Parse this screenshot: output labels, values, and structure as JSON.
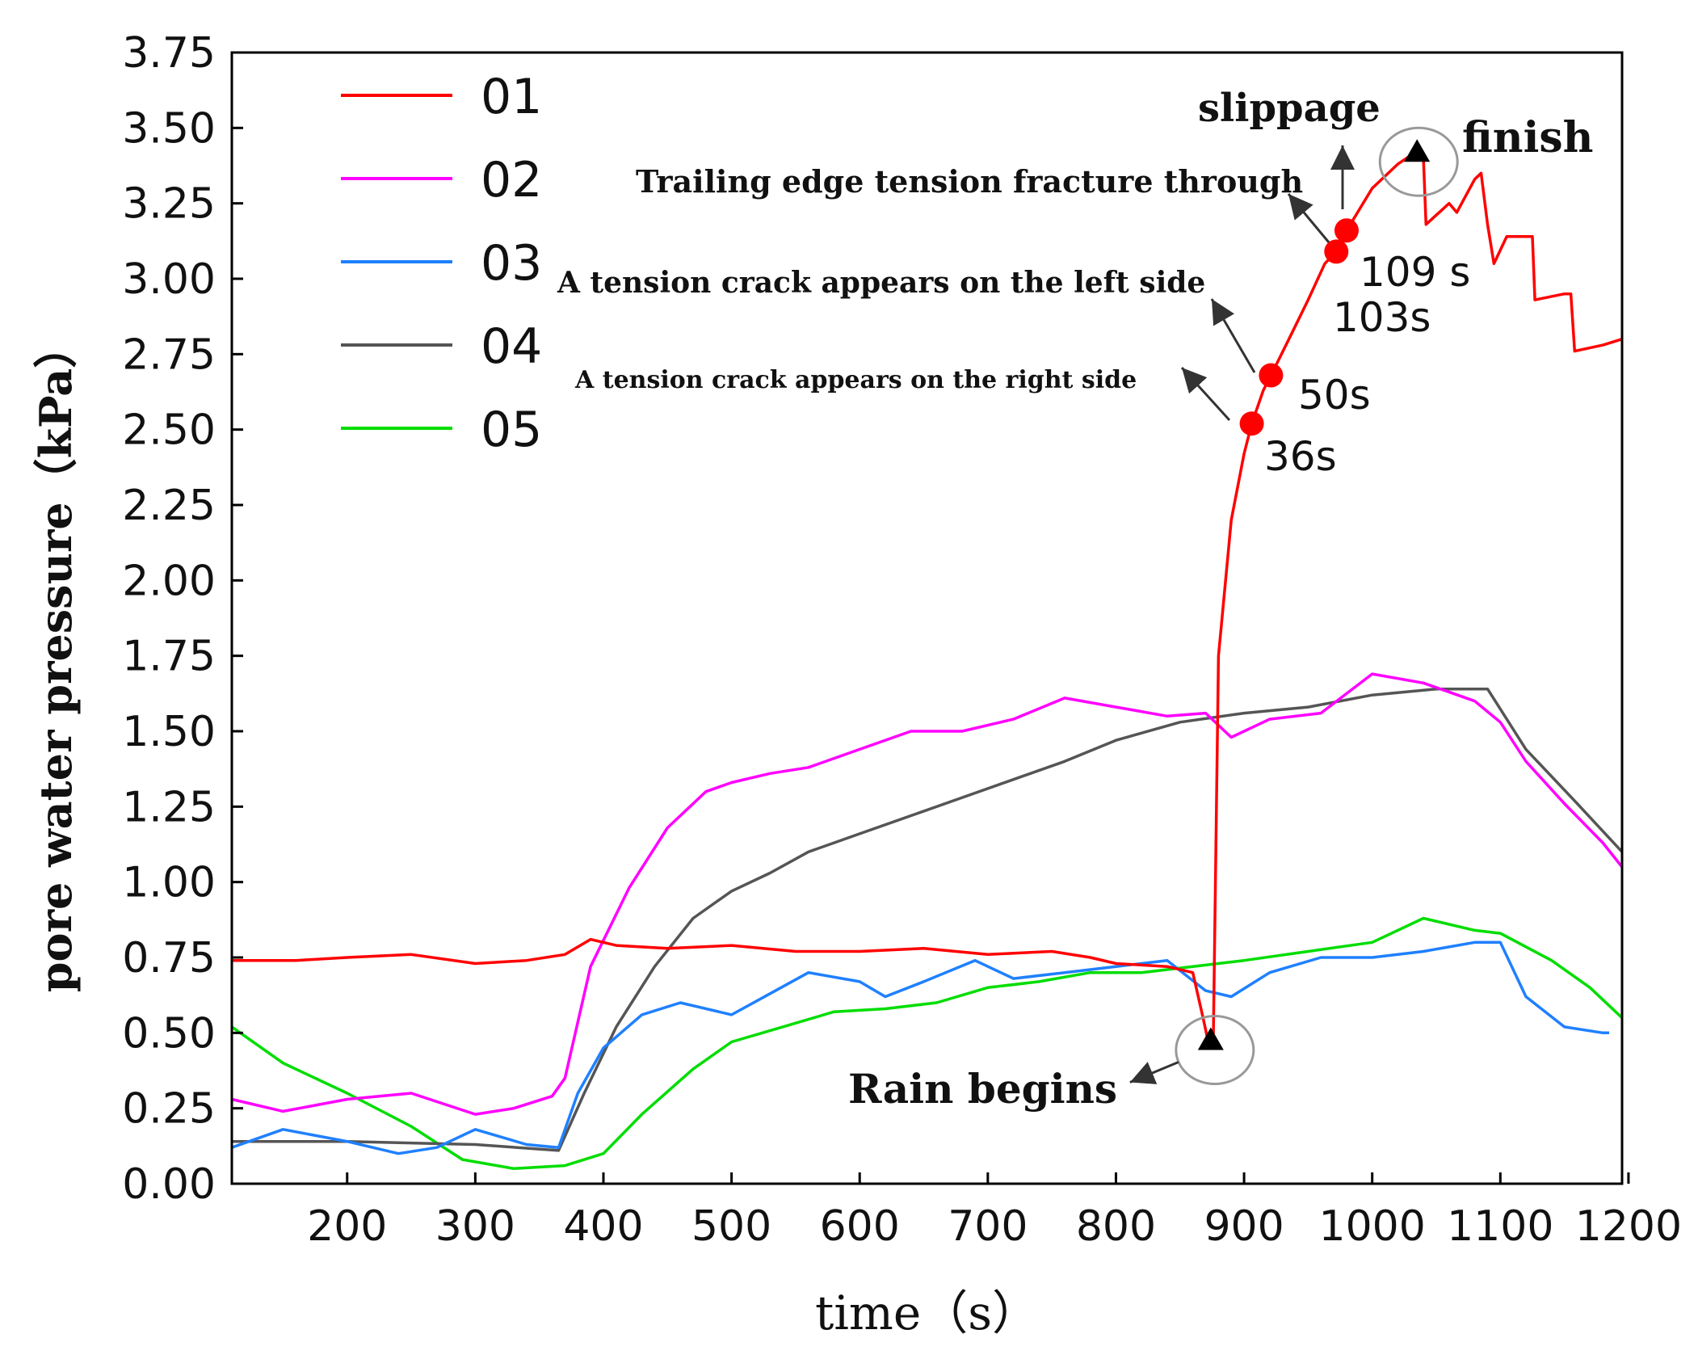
{
  "chart_data": {
    "type": "line",
    "xlabel": "time（s）",
    "ylabel": "pore water pressure（kPa）",
    "xlim": [
      110,
      1195
    ],
    "ylim": [
      0,
      3.75
    ],
    "x_ticks": [
      200,
      300,
      400,
      500,
      600,
      700,
      800,
      900,
      1000,
      1100,
      1200
    ],
    "x_tick_labels": [
      "200",
      "300",
      "400",
      "500",
      "600",
      "700",
      "800",
      "900",
      "1000",
      "1100",
      "1200"
    ],
    "y_ticks": [
      0,
      0.25,
      0.5,
      0.75,
      1.0,
      1.25,
      1.5,
      1.75,
      2.0,
      2.25,
      2.5,
      2.75,
      3.0,
      3.25,
      3.5,
      3.75
    ],
    "y_tick_labels": [
      "0.00",
      "0.25",
      "0.50",
      "0.75",
      "1.00",
      "1.25",
      "1.50",
      "1.75",
      "2.00",
      "2.25",
      "2.50",
      "2.75",
      "3.00",
      "3.25",
      "3.50",
      "3.75"
    ],
    "legend_position": "top-left",
    "series": [
      {
        "name": "01",
        "color": "#ff0000",
        "points": [
          [
            110,
            0.74
          ],
          [
            160,
            0.74
          ],
          [
            200,
            0.75
          ],
          [
            250,
            0.76
          ],
          [
            300,
            0.73
          ],
          [
            340,
            0.74
          ],
          [
            370,
            0.76
          ],
          [
            390,
            0.81
          ],
          [
            410,
            0.79
          ],
          [
            450,
            0.78
          ],
          [
            500,
            0.79
          ],
          [
            550,
            0.77
          ],
          [
            600,
            0.77
          ],
          [
            650,
            0.78
          ],
          [
            700,
            0.76
          ],
          [
            750,
            0.77
          ],
          [
            780,
            0.75
          ],
          [
            800,
            0.73
          ],
          [
            840,
            0.72
          ],
          [
            860,
            0.7
          ],
          [
            868,
            0.55
          ],
          [
            872,
            0.47
          ],
          [
            876,
            0.48
          ],
          [
            880,
            1.75
          ],
          [
            890,
            2.2
          ],
          [
            900,
            2.42
          ],
          [
            906,
            2.52
          ],
          [
            915,
            2.63
          ],
          [
            921,
            2.68
          ],
          [
            935,
            2.8
          ],
          [
            950,
            2.93
          ],
          [
            963,
            3.05
          ],
          [
            972,
            3.09
          ],
          [
            980,
            3.16
          ],
          [
            1000,
            3.3
          ],
          [
            1020,
            3.38
          ],
          [
            1034,
            3.42
          ],
          [
            1040,
            3.4
          ],
          [
            1042,
            3.18
          ],
          [
            1060,
            3.25
          ],
          [
            1066,
            3.22
          ],
          [
            1080,
            3.33
          ],
          [
            1085,
            3.35
          ],
          [
            1090,
            3.18
          ],
          [
            1095,
            3.05
          ],
          [
            1105,
            3.14
          ],
          [
            1125,
            3.14
          ],
          [
            1127,
            2.93
          ],
          [
            1150,
            2.95
          ],
          [
            1155,
            2.95
          ],
          [
            1158,
            2.76
          ],
          [
            1180,
            2.78
          ],
          [
            1195,
            2.8
          ]
        ]
      },
      {
        "name": "02",
        "color": "#ff00ff",
        "points": [
          [
            110,
            0.28
          ],
          [
            150,
            0.24
          ],
          [
            200,
            0.28
          ],
          [
            250,
            0.3
          ],
          [
            300,
            0.23
          ],
          [
            330,
            0.25
          ],
          [
            360,
            0.29
          ],
          [
            370,
            0.35
          ],
          [
            390,
            0.72
          ],
          [
            420,
            0.98
          ],
          [
            450,
            1.18
          ],
          [
            480,
            1.3
          ],
          [
            500,
            1.33
          ],
          [
            530,
            1.36
          ],
          [
            560,
            1.38
          ],
          [
            600,
            1.44
          ],
          [
            640,
            1.5
          ],
          [
            680,
            1.5
          ],
          [
            720,
            1.54
          ],
          [
            760,
            1.61
          ],
          [
            800,
            1.58
          ],
          [
            840,
            1.55
          ],
          [
            870,
            1.56
          ],
          [
            890,
            1.48
          ],
          [
            920,
            1.54
          ],
          [
            960,
            1.56
          ],
          [
            1000,
            1.69
          ],
          [
            1040,
            1.66
          ],
          [
            1080,
            1.6
          ],
          [
            1100,
            1.53
          ],
          [
            1120,
            1.4
          ],
          [
            1150,
            1.26
          ],
          [
            1180,
            1.13
          ],
          [
            1195,
            1.05
          ]
        ]
      },
      {
        "name": "03",
        "color": "#1f80ff",
        "points": [
          [
            110,
            0.12
          ],
          [
            150,
            0.18
          ],
          [
            200,
            0.14
          ],
          [
            240,
            0.1
          ],
          [
            270,
            0.12
          ],
          [
            300,
            0.18
          ],
          [
            340,
            0.13
          ],
          [
            365,
            0.12
          ],
          [
            380,
            0.3
          ],
          [
            400,
            0.45
          ],
          [
            430,
            0.56
          ],
          [
            460,
            0.6
          ],
          [
            500,
            0.56
          ],
          [
            530,
            0.63
          ],
          [
            560,
            0.7
          ],
          [
            600,
            0.67
          ],
          [
            620,
            0.62
          ],
          [
            650,
            0.67
          ],
          [
            690,
            0.74
          ],
          [
            720,
            0.68
          ],
          [
            760,
            0.7
          ],
          [
            800,
            0.72
          ],
          [
            840,
            0.74
          ],
          [
            870,
            0.64
          ],
          [
            890,
            0.62
          ],
          [
            920,
            0.7
          ],
          [
            960,
            0.75
          ],
          [
            1000,
            0.75
          ],
          [
            1040,
            0.77
          ],
          [
            1080,
            0.8
          ],
          [
            1100,
            0.8
          ],
          [
            1120,
            0.62
          ],
          [
            1150,
            0.52
          ],
          [
            1180,
            0.5
          ],
          [
            1185,
            0.5
          ]
        ]
      },
      {
        "name": "04",
        "color": "#555555",
        "points": [
          [
            110,
            0.14
          ],
          [
            200,
            0.14
          ],
          [
            300,
            0.13
          ],
          [
            365,
            0.11
          ],
          [
            385,
            0.3
          ],
          [
            410,
            0.52
          ],
          [
            440,
            0.72
          ],
          [
            470,
            0.88
          ],
          [
            500,
            0.97
          ],
          [
            530,
            1.03
          ],
          [
            560,
            1.1
          ],
          [
            600,
            1.16
          ],
          [
            640,
            1.22
          ],
          [
            680,
            1.28
          ],
          [
            720,
            1.34
          ],
          [
            760,
            1.4
          ],
          [
            800,
            1.47
          ],
          [
            850,
            1.53
          ],
          [
            900,
            1.56
          ],
          [
            950,
            1.58
          ],
          [
            1000,
            1.62
          ],
          [
            1050,
            1.64
          ],
          [
            1090,
            1.64
          ],
          [
            1120,
            1.44
          ],
          [
            1160,
            1.26
          ],
          [
            1195,
            1.1
          ]
        ]
      },
      {
        "name": "05",
        "color": "#00dd00",
        "points": [
          [
            110,
            0.52
          ],
          [
            150,
            0.4
          ],
          [
            200,
            0.3
          ],
          [
            250,
            0.19
          ],
          [
            290,
            0.08
          ],
          [
            330,
            0.05
          ],
          [
            370,
            0.06
          ],
          [
            400,
            0.1
          ],
          [
            430,
            0.23
          ],
          [
            470,
            0.38
          ],
          [
            500,
            0.47
          ],
          [
            540,
            0.52
          ],
          [
            580,
            0.57
          ],
          [
            620,
            0.58
          ],
          [
            660,
            0.6
          ],
          [
            700,
            0.65
          ],
          [
            740,
            0.67
          ],
          [
            780,
            0.7
          ],
          [
            820,
            0.7
          ],
          [
            860,
            0.72
          ],
          [
            900,
            0.74
          ],
          [
            950,
            0.77
          ],
          [
            1000,
            0.8
          ],
          [
            1040,
            0.88
          ],
          [
            1080,
            0.84
          ],
          [
            1100,
            0.83
          ],
          [
            1140,
            0.74
          ],
          [
            1170,
            0.65
          ],
          [
            1195,
            0.55
          ]
        ]
      }
    ],
    "events": [
      {
        "x": 906,
        "y": 2.52,
        "time_label": "36s",
        "text": "A tension crack appears on the right side"
      },
      {
        "x": 921,
        "y": 2.68,
        "time_label": "50s",
        "text": "A tension crack appears on the left side"
      },
      {
        "x": 972,
        "y": 3.09,
        "time_label": "103s",
        "text": "Trailing edge tension fracture through"
      },
      {
        "x": 980,
        "y": 3.16,
        "time_label": "109 s",
        "text": "slippage"
      }
    ],
    "markers": [
      {
        "x": 874,
        "y": 0.47,
        "text": "Rain begins"
      },
      {
        "x": 1035,
        "y": 3.42,
        "text": "finish"
      }
    ]
  }
}
